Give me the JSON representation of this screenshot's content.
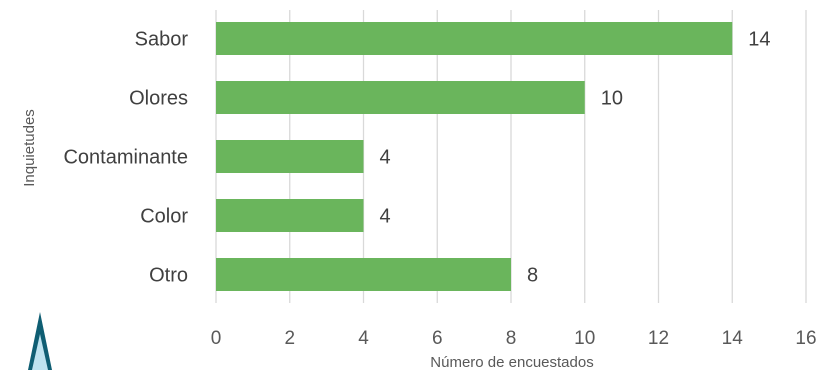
{
  "chart_data": {
    "type": "bar",
    "orientation": "horizontal",
    "categories": [
      "Sabor",
      "Olores",
      "Contaminante",
      "Color",
      "Otro"
    ],
    "values": [
      14,
      10,
      4,
      4,
      8
    ],
    "xlabel": "Número de encuestados",
    "ylabel": "Inquietudes",
    "xlim": [
      0,
      16
    ],
    "xticks": [
      0,
      2,
      4,
      6,
      8,
      10,
      12,
      14,
      16
    ],
    "grid": "vertical",
    "bar_color": "#6AB55C",
    "data_labels": true
  },
  "logo": {
    "name": "triangle-logo",
    "colors": [
      "#0F5E73",
      "#BFE3F0"
    ]
  }
}
